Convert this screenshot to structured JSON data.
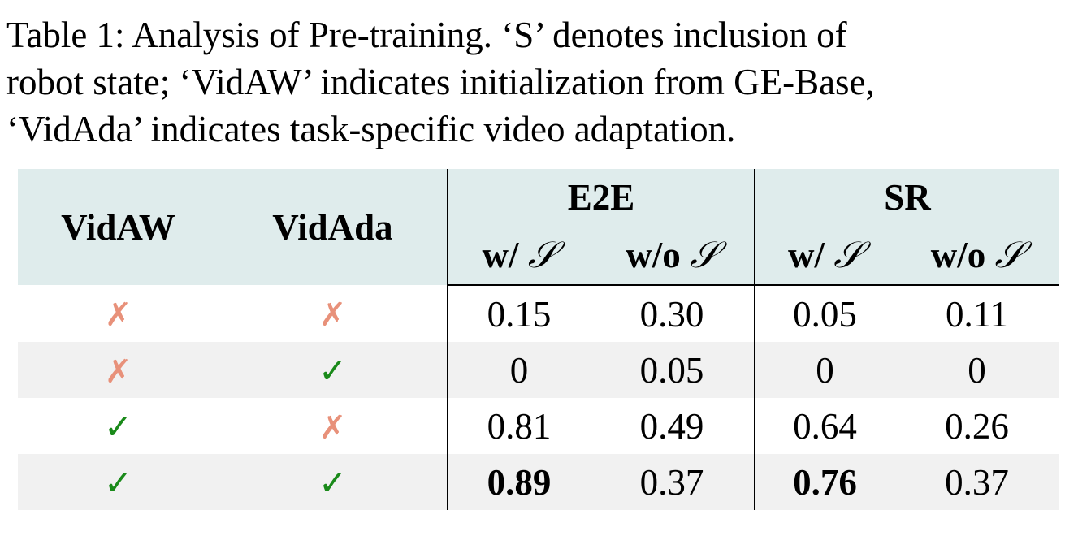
{
  "caption": {
    "lines": [
      "Table 1: Analysis of Pre-training. ‘S’ denotes inclusion of",
      "robot state; ‘VidAW’ indicates initialization from GE-Base,",
      "‘VidAda’ indicates task-specific video adaptation."
    ]
  },
  "table": {
    "headers": {
      "col1": "VidAW",
      "col2": "VidAda",
      "group1": "E2E",
      "group2": "SR",
      "sub_with": "w/",
      "sub_without": "w/o",
      "state_symbol": "𝒮"
    },
    "marks": {
      "cross": "✗",
      "check": "✓"
    },
    "rows": [
      {
        "vidaw": "✗",
        "vidada": "✗",
        "e2e_with": "0.15",
        "e2e_without": "0.30",
        "sr_with": "0.05",
        "sr_without": "0.11"
      },
      {
        "vidaw": "✗",
        "vidada": "✓",
        "e2e_with": "0",
        "e2e_without": "0.05",
        "sr_with": "0",
        "sr_without": "0"
      },
      {
        "vidaw": "✓",
        "vidada": "✗",
        "e2e_with": "0.81",
        "e2e_without": "0.49",
        "sr_with": "0.64",
        "sr_without": "0.26"
      },
      {
        "vidaw": "✓",
        "vidada": "✓",
        "e2e_with": "0.89",
        "e2e_without": "0.37",
        "sr_with": "0.76",
        "sr_without": "0.37"
      }
    ],
    "colors": {
      "header_bg": "#dfecec",
      "shaded_row_bg": "#f1f1f1",
      "check": "#1a8a1a",
      "cross": "#e8917a"
    }
  }
}
